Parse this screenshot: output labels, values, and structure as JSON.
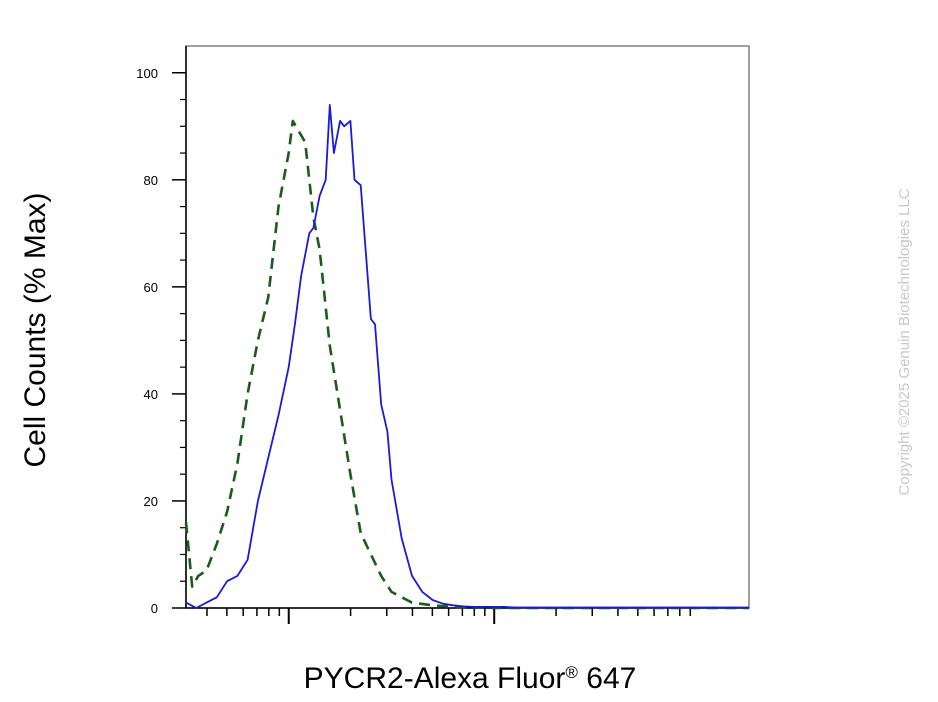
{
  "chart_data": {
    "type": "line",
    "xlabel_main": "PYCR2-Alexa Fluor",
    "xlabel_sup": "®",
    "xlabel_tail": " 647",
    "ylabel": "Cell Counts (% Max)",
    "ylim": [
      0,
      105
    ],
    "y_ticks": [
      0,
      20,
      40,
      60,
      80,
      100
    ],
    "y_tick_labels": [
      "0",
      "20",
      "40",
      "60",
      "80",
      "100"
    ],
    "xscale": "log",
    "xlim": [
      -0.5,
      2.24
    ],
    "x_major_ticks": [
      0,
      1
    ],
    "grid": false,
    "legend": "none",
    "series": [
      {
        "style": "dashed",
        "color": "#1a5c1a",
        "x": [
          -0.5,
          -0.47,
          -0.44,
          -0.4,
          -0.35,
          -0.3,
          -0.25,
          -0.2,
          -0.15,
          -0.1,
          -0.05,
          0.0,
          0.02,
          0.05,
          0.08,
          0.1,
          0.12,
          0.15,
          0.2,
          0.25,
          0.3,
          0.35,
          0.4,
          0.45,
          0.5,
          0.6,
          0.7,
          0.8,
          0.9,
          1.0,
          1.2,
          1.5,
          2.0,
          2.24
        ],
        "y": [
          16,
          4,
          6,
          7,
          12,
          18,
          27,
          40,
          50,
          58,
          75,
          85,
          91,
          89,
          87,
          80,
          73,
          67,
          49,
          37,
          25,
          14,
          10,
          6,
          3,
          1,
          0.5,
          0.2,
          0.1,
          0,
          0,
          0,
          0,
          0
        ]
      },
      {
        "style": "solid",
        "color": "#1a1adc",
        "x": [
          -0.5,
          -0.45,
          -0.4,
          -0.35,
          -0.3,
          -0.25,
          -0.2,
          -0.15,
          -0.1,
          -0.05,
          0.0,
          0.03,
          0.06,
          0.1,
          0.12,
          0.15,
          0.18,
          0.2,
          0.22,
          0.25,
          0.27,
          0.3,
          0.32,
          0.35,
          0.4,
          0.42,
          0.45,
          0.48,
          0.5,
          0.55,
          0.6,
          0.65,
          0.7,
          0.75,
          0.8,
          0.85,
          0.9,
          0.95,
          1.0,
          1.05,
          1.1,
          1.2,
          1.3,
          1.5,
          1.8,
          2.0,
          2.24
        ],
        "y": [
          1,
          0,
          1,
          2,
          5,
          6,
          9,
          20,
          28,
          36,
          45,
          53,
          62,
          70,
          71,
          77,
          80,
          94,
          85,
          91,
          90,
          91,
          80,
          79,
          54,
          53,
          38,
          33,
          24,
          13,
          6,
          3,
          1.5,
          0.8,
          0.5,
          0.3,
          0.2,
          0.2,
          0.2,
          0.2,
          0.1,
          0.1,
          0.1,
          0.1,
          0.1,
          0.1,
          0.1
        ]
      }
    ]
  },
  "watermark": "Copyright ©2025 Genuin Biotechnologies LLC"
}
